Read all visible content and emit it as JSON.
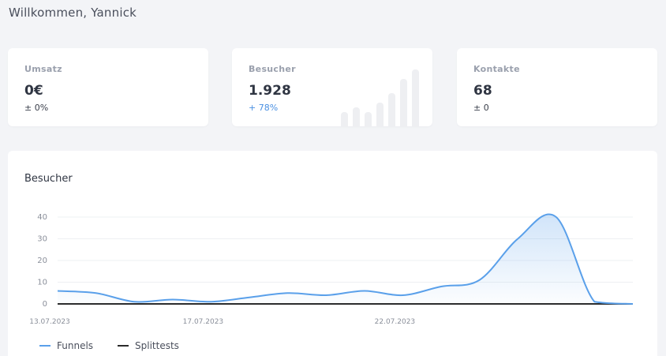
{
  "header": {
    "welcome": "Willkommen, Yannick"
  },
  "cards": [
    {
      "label": "Umsatz",
      "value": "0€",
      "delta": "± 0%"
    },
    {
      "label": "Besucher",
      "value": "1.928",
      "delta": "+ 78%",
      "sparkline": [
        3,
        4,
        3,
        5,
        7,
        10,
        12
      ]
    },
    {
      "label": "Kontakte",
      "value": "68",
      "delta": "± 0"
    }
  ],
  "chart_data": {
    "type": "area",
    "title": "Besucher",
    "ylim": [
      0,
      40
    ],
    "yticks": [
      "0",
      "10",
      "20",
      "30",
      "40"
    ],
    "xticks": [
      "13.07.2023",
      "17.07.2023",
      "22.07.2023"
    ],
    "grid": true,
    "legend_position": "bottom-left",
    "x": [
      "13.07.2023",
      "14.07.2023",
      "15.07.2023",
      "16.07.2023",
      "17.07.2023",
      "18.07.2023",
      "19.07.2023",
      "20.07.2023",
      "21.07.2023",
      "22.07.2023",
      "23.07.2023",
      "24.07.2023",
      "25.07.2023",
      "26.07.2023",
      "27.07.2023",
      "28.07.2023"
    ],
    "series": [
      {
        "name": "Funnels",
        "color": "#5aa0ea",
        "values": [
          6,
          5,
          1,
          2,
          1,
          3,
          5,
          4,
          6,
          4,
          8,
          11,
          30,
          40,
          1,
          0
        ],
        "fill": true
      },
      {
        "name": "Splittests",
        "color": "#2b2b2b",
        "values": [
          0,
          0,
          0,
          0,
          0,
          0,
          0,
          0,
          0,
          0,
          0,
          0,
          0,
          0,
          0,
          0
        ],
        "fill": false
      }
    ]
  }
}
